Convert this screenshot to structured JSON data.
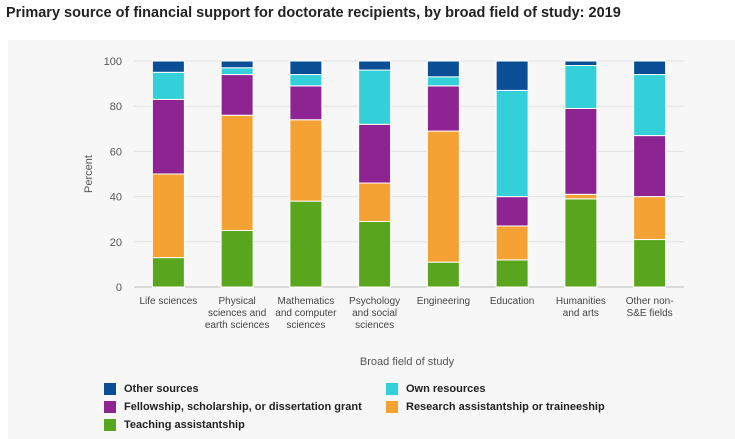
{
  "title": "Primary source of financial support for doctorate recipients, by broad field of study: 2019",
  "chart_data": {
    "type": "bar",
    "stacked": true,
    "title": "Primary source of financial support for doctorate recipients, by broad field of study: 2019",
    "xlabel": "Broad field of study",
    "ylabel": "Percent",
    "ylim": [
      0,
      100
    ],
    "yticks": [
      0,
      20,
      40,
      60,
      80,
      100
    ],
    "grid": true,
    "legend_position": "bottom",
    "categories": [
      [
        "Life sciences"
      ],
      [
        "Physical",
        "sciences and",
        "earth sciences"
      ],
      [
        "Mathematics",
        "and computer",
        "sciences"
      ],
      [
        "Psychology",
        "and social",
        "sciences"
      ],
      [
        "Engineering"
      ],
      [
        "Education"
      ],
      [
        "Humanities",
        "and arts"
      ],
      [
        "Other non-",
        "S&E fields"
      ]
    ],
    "series": [
      {
        "name": "Teaching assistantship",
        "color": "#5aa51e",
        "values": [
          13,
          25,
          38,
          29,
          11,
          12,
          39,
          21
        ]
      },
      {
        "name": "Research assistantship or traineeship",
        "color": "#f4a234",
        "values": [
          37,
          51,
          36,
          17,
          58,
          15,
          2,
          19
        ]
      },
      {
        "name": "Fellowship, scholarship, or dissertation grant",
        "color": "#8d2491",
        "values": [
          33,
          18,
          15,
          26,
          20,
          13,
          38,
          27
        ]
      },
      {
        "name": "Own resources",
        "color": "#34d0da",
        "values": [
          12,
          3,
          5,
          24,
          4,
          47,
          19,
          27
        ]
      },
      {
        "name": "Other sources",
        "color": "#0a4f96",
        "values": [
          5,
          3,
          6,
          4,
          7,
          13,
          2,
          6
        ]
      }
    ],
    "legend_order": [
      "Other sources",
      "Own resources",
      "Fellowship, scholarship, or dissertation grant",
      "Research assistantship or traineeship",
      "Teaching assistantship"
    ]
  }
}
